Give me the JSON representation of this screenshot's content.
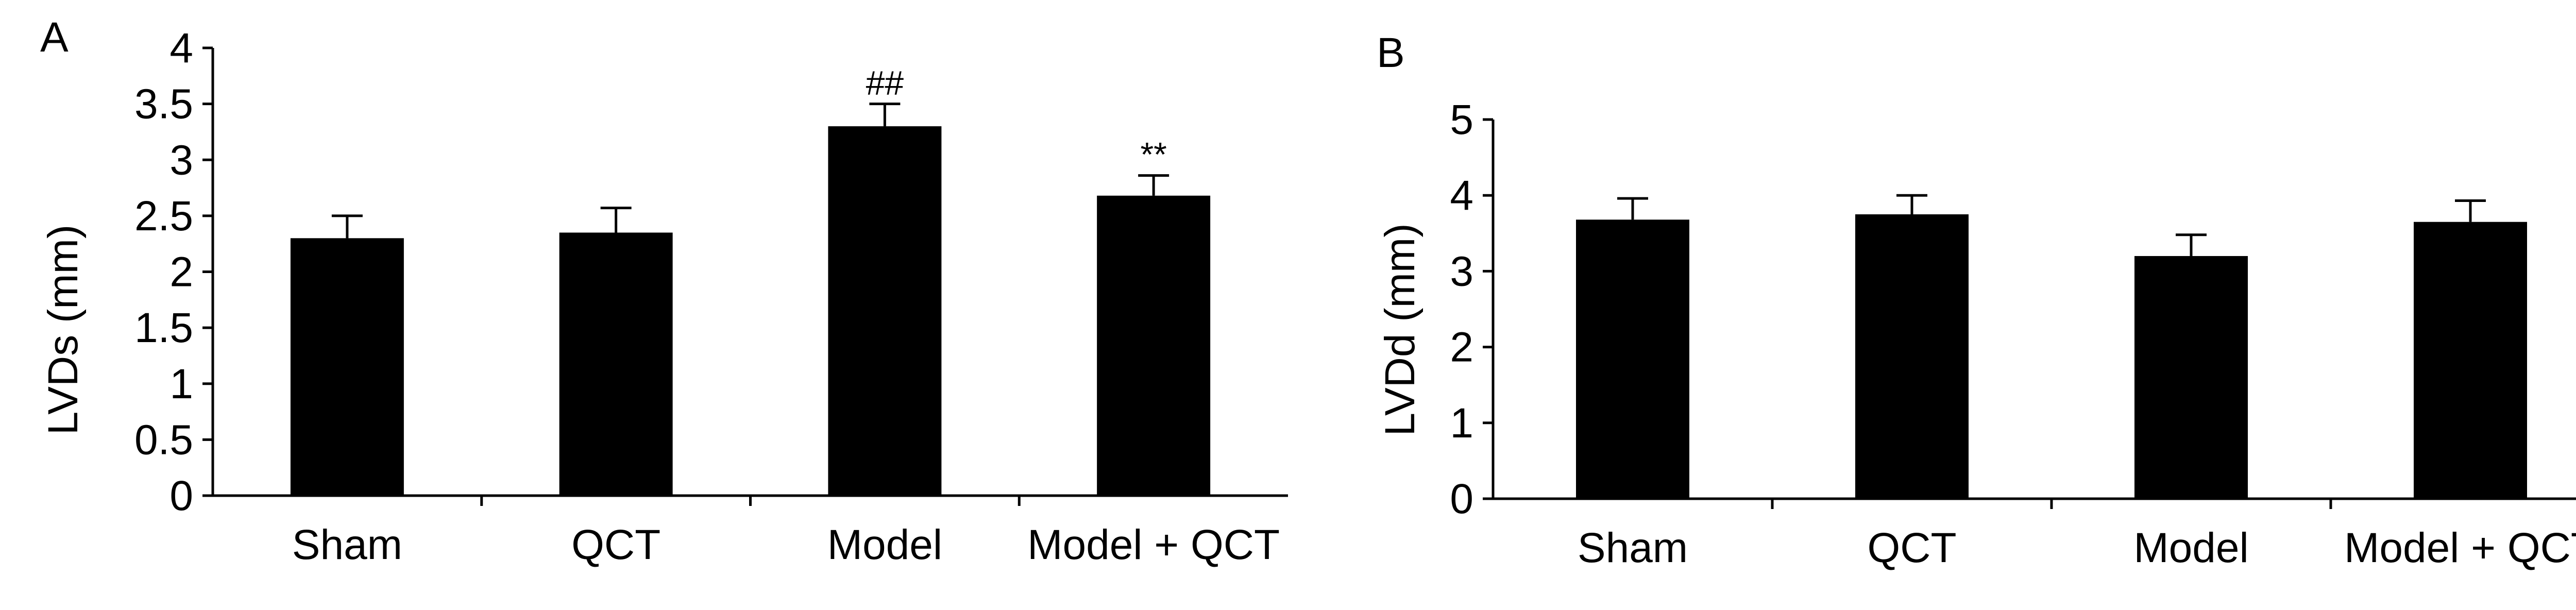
{
  "chart_data": [
    {
      "type": "bar",
      "panel_label": "A",
      "ylabel": "LVDs (mm)",
      "xlabel": "",
      "categories": [
        "Sham",
        "QCT",
        "Model",
        "Model + QCT"
      ],
      "values": [
        2.3,
        2.35,
        3.3,
        2.68
      ],
      "errors": [
        0.2,
        0.22,
        0.2,
        0.18
      ],
      "annotations": [
        "",
        "",
        "##",
        "**"
      ],
      "ylim": [
        0,
        4
      ],
      "yticks": [
        "0",
        "0.5",
        "1",
        "1.5",
        "2",
        "2.5",
        "3",
        "3.5",
        "4"
      ],
      "bar_color": "#000000",
      "grid": false,
      "legend": "none"
    },
    {
      "type": "bar",
      "panel_label": "B",
      "ylabel": "LVDd (mm)",
      "xlabel": "",
      "categories": [
        "Sham",
        "QCT",
        "Model",
        "Model + QCT"
      ],
      "values": [
        3.68,
        3.75,
        3.2,
        3.65
      ],
      "errors": [
        0.28,
        0.25,
        0.28,
        0.28
      ],
      "annotations": [
        "",
        "",
        "",
        ""
      ],
      "ylim": [
        0,
        5
      ],
      "yticks": [
        "0",
        "1",
        "2",
        "3",
        "4",
        "5"
      ],
      "bar_color": "#000000",
      "grid": false,
      "legend": "none"
    }
  ]
}
